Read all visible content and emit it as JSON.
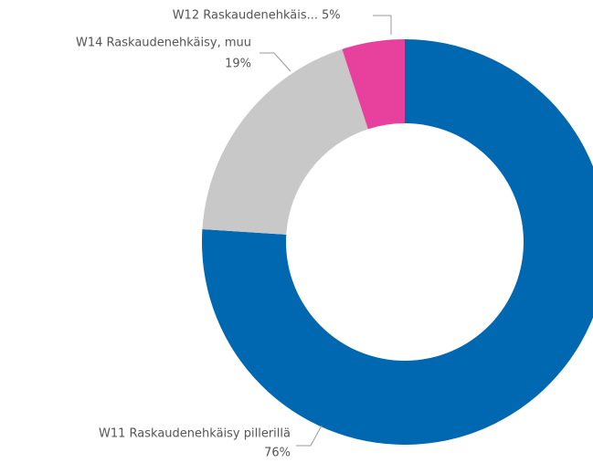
{
  "chart_data": {
    "type": "donut",
    "categories": [
      "W11 Raskaudenehkäisy pillerillä",
      "W14 Raskaudenehkäisy, muu",
      "W12 Raskaudenehkäis..."
    ],
    "values": [
      76,
      19,
      5
    ],
    "value_labels": [
      "76%",
      "19%",
      "5%"
    ],
    "colors": [
      "#0067b1",
      "#c8c8c8",
      "#e8409d"
    ]
  }
}
